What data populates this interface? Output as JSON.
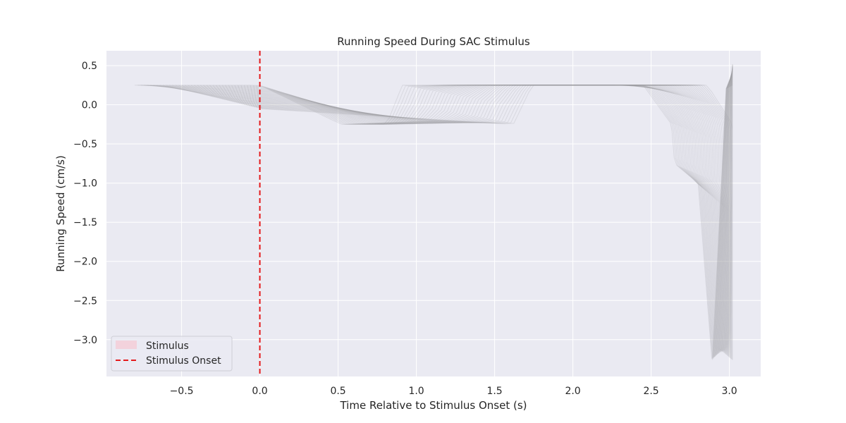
{
  "chart_data": {
    "type": "line",
    "title": "Running Speed During SAC Stimulus",
    "xlabel": "Time Relative to Stimulus Onset (s)",
    "ylabel": "Running Speed (cm/s)",
    "xlim": [
      -0.98,
      3.2
    ],
    "ylim": [
      -3.47,
      0.69
    ],
    "xticks": [
      -0.5,
      0.0,
      0.5,
      1.0,
      1.5,
      2.0,
      2.5,
      3.0
    ],
    "xtick_labels": [
      "−0.5",
      "0.0",
      "0.5",
      "1.0",
      "1.5",
      "2.0",
      "2.5",
      "3.0"
    ],
    "yticks": [
      0.5,
      0.0,
      -0.5,
      -1.0,
      -1.5,
      -2.0,
      -2.5,
      -3.0
    ],
    "ytick_labels": [
      "0.5",
      "0.0",
      "−0.5",
      "−1.0",
      "−1.5",
      "−2.0",
      "−2.5",
      "−3.0"
    ],
    "grid": true,
    "legend_position": "lower-left",
    "legend": [
      {
        "label": "Stimulus",
        "kind": "patch",
        "color": "#ffb6c1"
      },
      {
        "label": "Stimulus Onset",
        "kind": "dashed-line",
        "color": "#e41a1c"
      }
    ],
    "stimulus_onset_x": 0.0,
    "trace_color": "#9a9aa0",
    "trace_band_1": {
      "count": 40,
      "points_first": [
        [
          -0.8,
          0.25
        ],
        [
          0.0,
          0.25
        ],
        [
          0.52,
          -0.25
        ],
        [
          0.81,
          -0.25
        ],
        [
          0.91,
          0.25
        ],
        [
          2.45,
          0.25
        ],
        [
          2.63,
          -0.25
        ],
        [
          2.65,
          -0.75
        ],
        [
          2.8,
          -1.0
        ],
        [
          2.89,
          -3.3
        ],
        [
          2.98,
          0.25
        ],
        [
          3.02,
          0.25
        ]
      ],
      "points_last": [
        [
          -0.02,
          0.25
        ],
        [
          0.0,
          -0.05
        ],
        [
          1.62,
          -0.25
        ],
        [
          1.74,
          0.25
        ],
        [
          2.86,
          0.25
        ],
        [
          3.02,
          -0.25
        ],
        [
          3.02,
          -0.5
        ],
        [
          3.02,
          -3.3
        ],
        [
          3.02,
          0.52
        ]
      ]
    },
    "colors": {
      "plot_background": "#eaeaf2",
      "grid": "#ffffff",
      "onset_line": "#e41a1c",
      "stimulus_patch": "#ffb6c1"
    }
  }
}
